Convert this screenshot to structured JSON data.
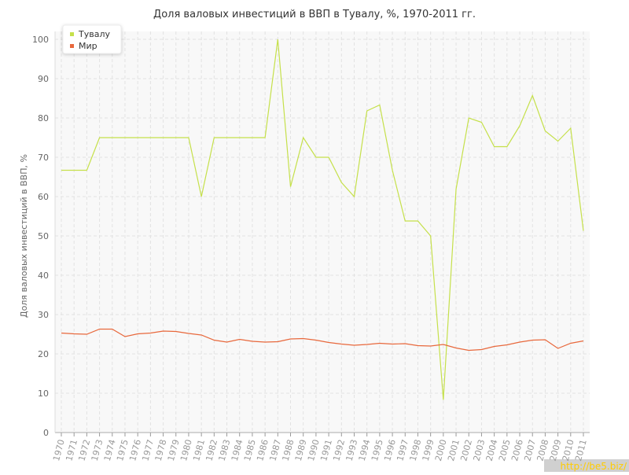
{
  "chart_data": {
    "type": "line",
    "title": "Доля валовых инвестиций в ВВП в Тувалу, %, 1970-2011 гг.",
    "y_label": "Доля валовых инвестиций в ВВП, %",
    "watermark": "http://be5.biz/",
    "categories": [
      "1970",
      "1971",
      "1972",
      "1973",
      "1974",
      "1975",
      "1976",
      "1977",
      "1978",
      "1979",
      "1980",
      "1981",
      "1982",
      "1983",
      "1984",
      "1985",
      "1986",
      "1987",
      "1988",
      "1989",
      "1990",
      "1991",
      "1992",
      "1993",
      "1994",
      "1995",
      "1996",
      "1997",
      "1998",
      "1999",
      "2000",
      "2001",
      "2002",
      "2003",
      "2004",
      "2005",
      "2006",
      "2007",
      "2008",
      "2009",
      "2010",
      "2011"
    ],
    "series": [
      {
        "name": "Тувалу",
        "color": "#c5e04a",
        "values": [
          66.7,
          66.7,
          66.7,
          75,
          75,
          75,
          75,
          75,
          75,
          75,
          75,
          60,
          75,
          75,
          75,
          75,
          75,
          100,
          62.5,
          75,
          70,
          70,
          63.6,
          60,
          81.8,
          83.3,
          66.7,
          53.8,
          53.8,
          50,
          8.3,
          61.9,
          80,
          78.9,
          72.7,
          72.7,
          78,
          85.7,
          76.7,
          74.1,
          77.4,
          51.3
        ]
      },
      {
        "name": "Мир",
        "color": "#e8683c",
        "values": [
          25.3,
          25.1,
          25,
          26.3,
          26.3,
          24.4,
          25.1,
          25.3,
          25.8,
          25.7,
          25.2,
          24.8,
          23.5,
          23,
          23.7,
          23.2,
          23,
          23.1,
          23.8,
          23.9,
          23.5,
          22.9,
          22.5,
          22.2,
          22.4,
          22.7,
          22.5,
          22.6,
          22.1,
          22,
          22.4,
          21.5,
          20.9,
          21.1,
          21.9,
          22.3,
          23,
          23.5,
          23.6,
          21.4,
          22.7,
          23.3
        ]
      }
    ],
    "ylim": [
      0,
      100
    ],
    "yticks": [
      0,
      10,
      20,
      30,
      40,
      50,
      60,
      70,
      80,
      90,
      100
    ],
    "grid": true,
    "legend": "top-left"
  }
}
